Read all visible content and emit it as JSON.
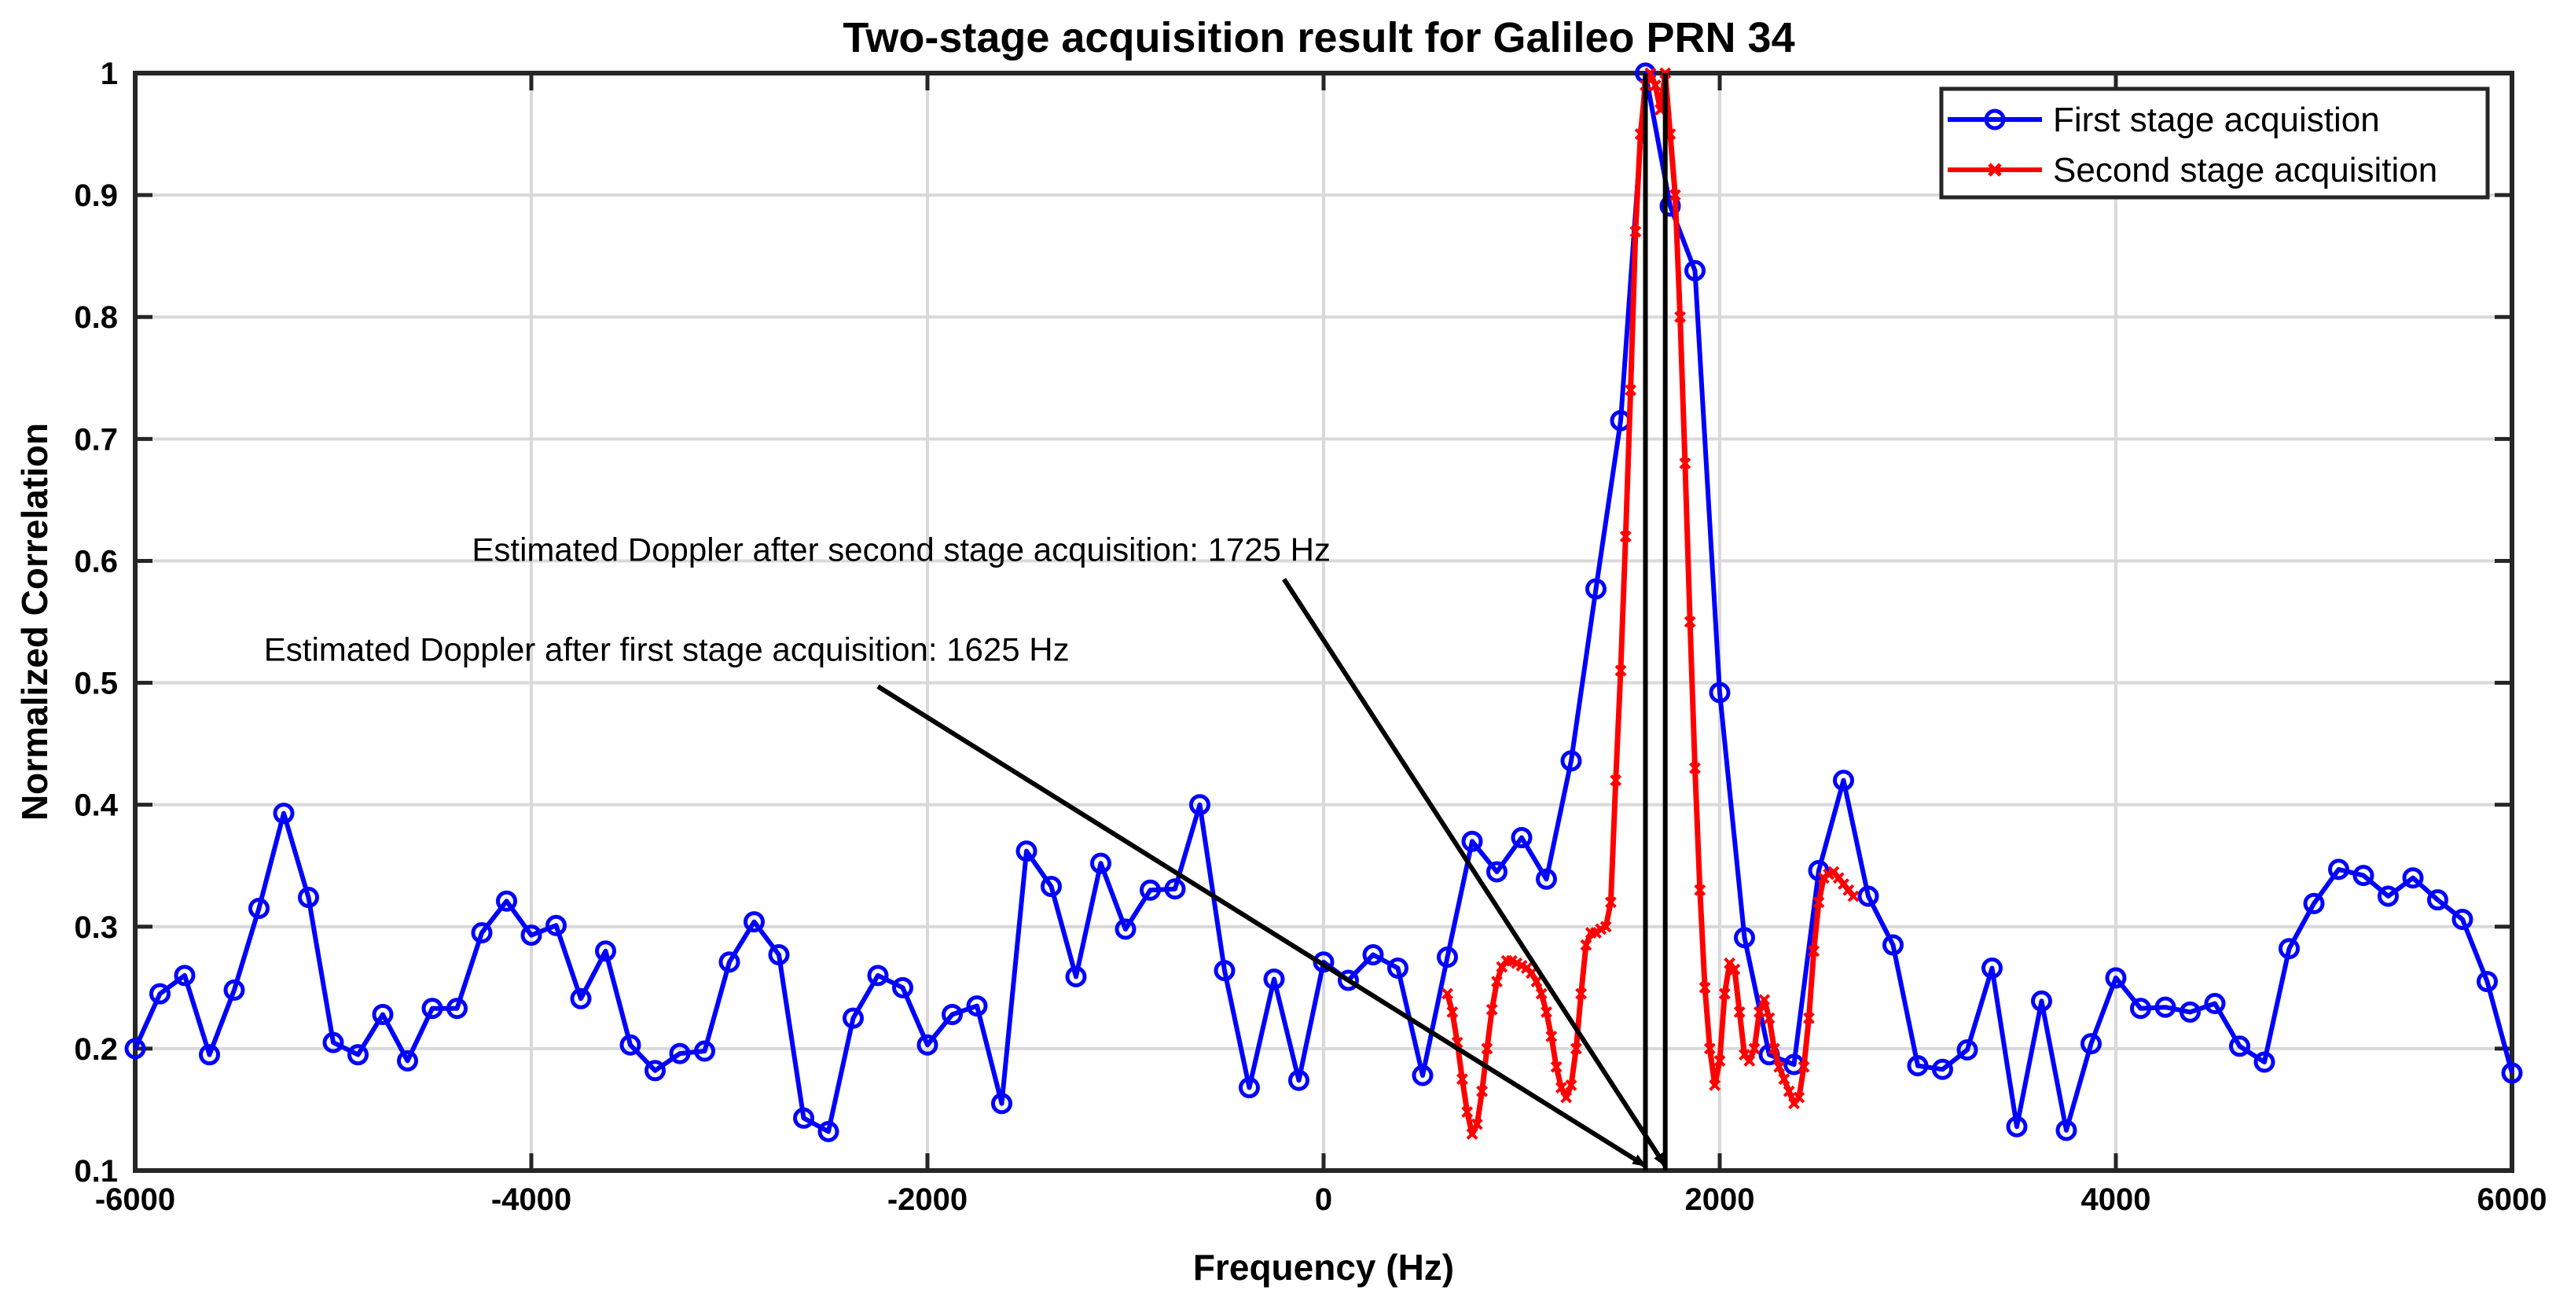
{
  "chart_data": {
    "type": "line",
    "title": "Two-stage acquisition result for Galileo PRN 34",
    "xlabel": "Frequency (Hz)",
    "ylabel": "Normalized Correlation",
    "xlim": [
      -6000,
      6000
    ],
    "ylim": [
      0.1,
      1
    ],
    "xticks": [
      -6000,
      -4000,
      -2000,
      0,
      2000,
      4000,
      6000
    ],
    "yticks": [
      0.1,
      0.2,
      0.3,
      0.4,
      0.5,
      0.6,
      0.7,
      0.8,
      0.9,
      1
    ],
    "xtick_labels": [
      "-6000",
      "-4000",
      "-2000",
      "0",
      "2000",
      "4000",
      "6000"
    ],
    "ytick_labels": [
      "0.1",
      "0.2",
      "0.3",
      "0.4",
      "0.5",
      "0.6",
      "0.7",
      "0.8",
      "0.9",
      "1"
    ],
    "grid": true,
    "legend_position": "top-right",
    "series": [
      {
        "name": "First stage acquistion",
        "color": "#0000ff",
        "marker": "circle",
        "x": [
          -6000,
          -5875,
          -5750,
          -5625,
          -5500,
          -5375,
          -5250,
          -5125,
          -5000,
          -4875,
          -4750,
          -4625,
          -4500,
          -4375,
          -4250,
          -4125,
          -4000,
          -3875,
          -3750,
          -3625,
          -3500,
          -3375,
          -3250,
          -3125,
          -3000,
          -2875,
          -2750,
          -2625,
          -2500,
          -2375,
          -2250,
          -2125,
          -2000,
          -1875,
          -1750,
          -1625,
          -1500,
          -1375,
          -1250,
          -1125,
          -1000,
          -875,
          -750,
          -625,
          -500,
          -375,
          -250,
          -125,
          0,
          125,
          250,
          375,
          500,
          625,
          750,
          875,
          1000,
          1125,
          1250,
          1375,
          1500,
          1625,
          1750,
          1875,
          2000,
          2125,
          2250,
          2375,
          2500,
          2625,
          2750,
          2875,
          3000,
          3125,
          3250,
          3375,
          3500,
          3625,
          3750,
          3875,
          4000,
          4125,
          4250,
          4375,
          4500,
          4625,
          4750,
          4875,
          5000,
          5125,
          5250,
          5375,
          5500,
          5625,
          5750,
          5875,
          6000
        ],
        "y": [
          0.2,
          0.245,
          0.26,
          0.195,
          0.248,
          0.315,
          0.393,
          0.324,
          0.205,
          0.195,
          0.228,
          0.19,
          0.233,
          0.233,
          0.295,
          0.321,
          0.293,
          0.301,
          0.241,
          0.28,
          0.203,
          0.182,
          0.196,
          0.198,
          0.271,
          0.304,
          0.277,
          0.143,
          0.132,
          0.225,
          0.26,
          0.25,
          0.203,
          0.228,
          0.235,
          0.155,
          0.362,
          0.333,
          0.259,
          0.352,
          0.298,
          0.33,
          0.331,
          0.4,
          0.264,
          0.168,
          0.257,
          0.174,
          0.271,
          0.256,
          0.277,
          0.266,
          0.178,
          0.275,
          0.37,
          0.345,
          0.373,
          0.339,
          0.436,
          0.577,
          0.715,
          1.0,
          0.891,
          0.838,
          0.492,
          0.291,
          0.195,
          0.187,
          0.346,
          0.42,
          0.325,
          0.285,
          0.186,
          0.183,
          0.199,
          0.266,
          0.136,
          0.239,
          0.133,
          0.204,
          0.258,
          0.233,
          0.234,
          0.23,
          0.237,
          0.202,
          0.189,
          0.282,
          0.319,
          0.347,
          0.342,
          0.325,
          0.34,
          0.322,
          0.306,
          0.255,
          0.18
        ]
      },
      {
        "name": "Second stage acquisition",
        "color": "#ff0000",
        "marker": "x",
        "x": [
          625,
          650,
          675,
          700,
          725,
          750,
          775,
          800,
          825,
          850,
          875,
          900,
          925,
          950,
          975,
          1000,
          1025,
          1050,
          1075,
          1100,
          1125,
          1150,
          1175,
          1200,
          1225,
          1250,
          1275,
          1300,
          1325,
          1350,
          1375,
          1400,
          1425,
          1450,
          1475,
          1500,
          1525,
          1550,
          1575,
          1600,
          1625,
          1650,
          1675,
          1700,
          1725,
          1750,
          1775,
          1800,
          1825,
          1850,
          1875,
          1900,
          1925,
          1950,
          1975,
          2000,
          2025,
          2050,
          2075,
          2100,
          2125,
          2150,
          2175,
          2200,
          2225,
          2250,
          2275,
          2300,
          2325,
          2350,
          2375,
          2400,
          2425,
          2450,
          2475,
          2500,
          2525,
          2550,
          2575,
          2600,
          2625,
          2650,
          2675
        ],
        "y": [
          0.245,
          0.23,
          0.205,
          0.175,
          0.148,
          0.13,
          0.138,
          0.165,
          0.2,
          0.232,
          0.255,
          0.267,
          0.272,
          0.272,
          0.27,
          0.268,
          0.266,
          0.262,
          0.255,
          0.245,
          0.23,
          0.21,
          0.185,
          0.168,
          0.16,
          0.17,
          0.2,
          0.245,
          0.285,
          0.295,
          0.295,
          0.298,
          0.3,
          0.32,
          0.42,
          0.51,
          0.62,
          0.74,
          0.87,
          0.95,
          0.99,
          1.0,
          0.99,
          0.97,
          1.0,
          0.95,
          0.9,
          0.8,
          0.68,
          0.55,
          0.43,
          0.33,
          0.25,
          0.2,
          0.17,
          0.19,
          0.245,
          0.27,
          0.265,
          0.23,
          0.195,
          0.19,
          0.2,
          0.23,
          0.24,
          0.225,
          0.2,
          0.185,
          0.175,
          0.165,
          0.155,
          0.16,
          0.185,
          0.225,
          0.28,
          0.32,
          0.34,
          0.343,
          0.345,
          0.34,
          0.335,
          0.33,
          0.325
        ]
      }
    ],
    "annotations": [
      {
        "text": "Estimated Doppler after second stage acquisition: 1725 Hz",
        "text_x": -4300,
        "text_y": 0.6,
        "arrow_from_x": -200,
        "arrow_from_y": 0.585,
        "arrow_to_x": 1725,
        "arrow_to_y": 0.1
      },
      {
        "text": "Estimated Doppler after first stage acquisition: 1625 Hz",
        "text_x": -5350,
        "text_y": 0.518,
        "arrow_from_x": -2250,
        "arrow_from_y": 0.497,
        "arrow_to_x": 1625,
        "arrow_to_y": 0.1
      }
    ],
    "vertical_markers": [
      {
        "x": 1625,
        "y_from": 0.1,
        "y_to": 1.0
      },
      {
        "x": 1725,
        "y_from": 0.1,
        "y_to": 1.0
      }
    ]
  }
}
